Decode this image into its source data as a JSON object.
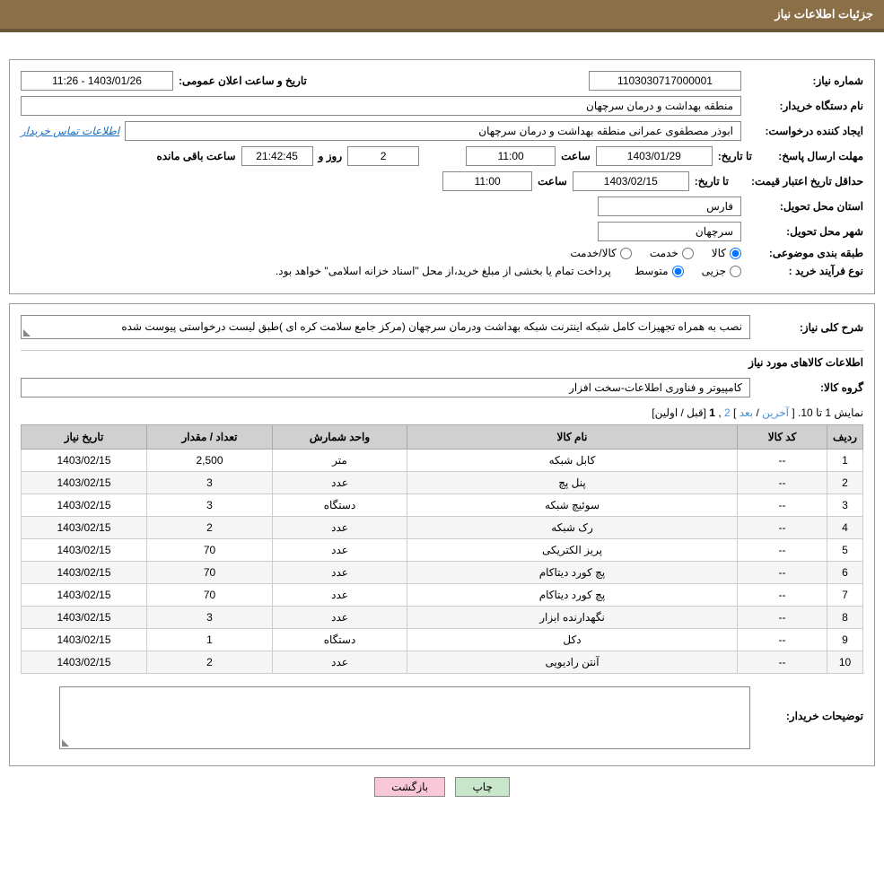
{
  "header": {
    "title": "جزئیات اطلاعات نیاز"
  },
  "fields": {
    "need_no_label": "شماره نیاز:",
    "need_no": "1103030717000001",
    "announce_label": "تاریخ و ساعت اعلان عمومی:",
    "announce_value": "1403/01/26 - 11:26",
    "buyer_label": "نام دستگاه خریدار:",
    "buyer_value": "منطقه بهداشت و درمان سرچهان",
    "creator_label": "ایجاد کننده درخواست:",
    "creator_value": "ابوذر مصطفوی عمرانی منطقه بهداشت و درمان سرچهان",
    "contact_link": "اطلاعات تماس خریدار",
    "deadline_label": "مهلت ارسال پاسخ:",
    "to_date_label": "تا تاریخ:",
    "deadline_date": "1403/01/29",
    "time_label": "ساعت",
    "deadline_time": "11:00",
    "days_label": "روز و",
    "days_value": "2",
    "countdown": "21:42:45",
    "remaining_label": "ساعت باقی مانده",
    "validity_label": "حداقل تاریخ اعتبار قیمت:",
    "validity_date": "1403/02/15",
    "validity_time": "11:00",
    "province_label": "استان محل تحویل:",
    "province_value": "فارس",
    "city_label": "شهر محل تحویل:",
    "city_value": "سرچهان",
    "category_label": "طبقه بندی موضوعی:",
    "cat_goods": "کالا",
    "cat_service": "خدمت",
    "cat_both": "کالا/خدمت",
    "process_label": "نوع فرآیند خرید :",
    "proc_partial": "جزیی",
    "proc_medium": "متوسط",
    "process_note": "پرداخت تمام یا بخشی از مبلغ خرید،از محل \"اسناد خزانه اسلامی\" خواهد بود."
  },
  "need_desc": {
    "label": "شرح کلی نیاز:",
    "value": "نصب به همراه تجهیزات کامل شبکه اینترنت شبکه بهداشت ودرمان سرچهان (مرکز جامع سلامت کره ای )طبق لیست درخواستی پیوست شده"
  },
  "items_section": {
    "title": "اطلاعات کالاهای مورد نیاز",
    "group_label": "گروه کالا:",
    "group_value": "کامپیوتر و فناوری اطلاعات-سخت افزار",
    "pagination_text": "نمایش 1 تا 10.",
    "pag_last": "آخرین",
    "pag_next": "بعد",
    "pag_2": "2",
    "pag_1": "1",
    "pag_prev": "قبل",
    "pag_first": "اولین",
    "columns": [
      "ردیف",
      "کد کالا",
      "نام کالا",
      "واحد شمارش",
      "تعداد / مقدار",
      "تاریخ نیاز"
    ],
    "rows": [
      [
        "1",
        "--",
        "کابل شبکه",
        "متر",
        "2,500",
        "1403/02/15"
      ],
      [
        "2",
        "--",
        "پنل پچ",
        "عدد",
        "3",
        "1403/02/15"
      ],
      [
        "3",
        "--",
        "سوئیچ شبکه",
        "دستگاه",
        "3",
        "1403/02/15"
      ],
      [
        "4",
        "--",
        "رک شبکه",
        "عدد",
        "2",
        "1403/02/15"
      ],
      [
        "5",
        "--",
        "پریز الکتریکی",
        "عدد",
        "70",
        "1403/02/15"
      ],
      [
        "6",
        "--",
        "پچ کورد دیتاکام",
        "عدد",
        "70",
        "1403/02/15"
      ],
      [
        "7",
        "--",
        "پچ کورد دیتاکام",
        "عدد",
        "70",
        "1403/02/15"
      ],
      [
        "8",
        "--",
        "نگهدارنده ابزار",
        "عدد",
        "3",
        "1403/02/15"
      ],
      [
        "9",
        "--",
        "دکل",
        "دستگاه",
        "1",
        "1403/02/15"
      ],
      [
        "10",
        "--",
        "آنتن رادیویی",
        "عدد",
        "2",
        "1403/02/15"
      ]
    ]
  },
  "buyer_notes": {
    "label": "توضیحات خریدار:",
    "value": ""
  },
  "buttons": {
    "print": "چاپ",
    "back": "بازگشت"
  },
  "colors": {
    "header_bg": "#8B6F47",
    "header_border": "#6B5637",
    "th_bg": "#d0d0d0",
    "link": "#4a90d9",
    "btn_green": "#c8e6c9",
    "btn_pink": "#f8c8d8"
  }
}
